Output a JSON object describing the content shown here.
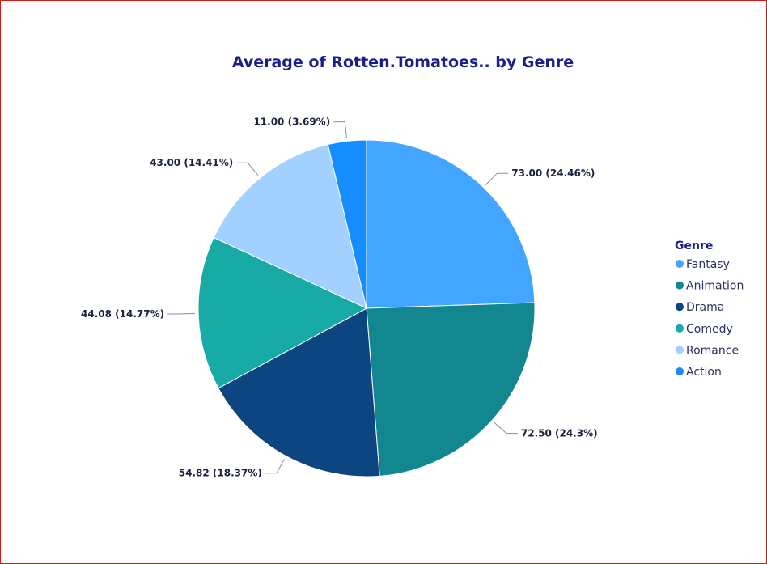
{
  "chart_data": {
    "type": "pie",
    "title": "Average of Rotten.Tomatoes.. by Genre",
    "legend": {
      "title": "Genre",
      "placement": "right"
    },
    "slices": [
      {
        "label": "Fantasy",
        "value": 73.0,
        "percent": "24.46%",
        "data_label": "73.00 (24.46%)",
        "color": "#42a5ff"
      },
      {
        "label": "Animation",
        "value": 72.5,
        "percent": "24.3%",
        "data_label": "72.50 (24.3%)",
        "color": "#13878f"
      },
      {
        "label": "Drama",
        "value": 54.82,
        "percent": "18.37%",
        "data_label": "54.82 (18.37%)",
        "color": "#0c4580"
      },
      {
        "label": "Comedy",
        "value": 44.08,
        "percent": "14.77%",
        "data_label": "44.08 (14.77%)",
        "color": "#18aaa5"
      },
      {
        "label": "Romance",
        "value": 43.0,
        "percent": "14.41%",
        "data_label": "43.00 (14.41%)",
        "color": "#a2d1ff"
      },
      {
        "label": "Action",
        "value": 11.0,
        "percent": "3.69%",
        "data_label": "11.00 (3.69%)",
        "color": "#168dff"
      }
    ]
  }
}
